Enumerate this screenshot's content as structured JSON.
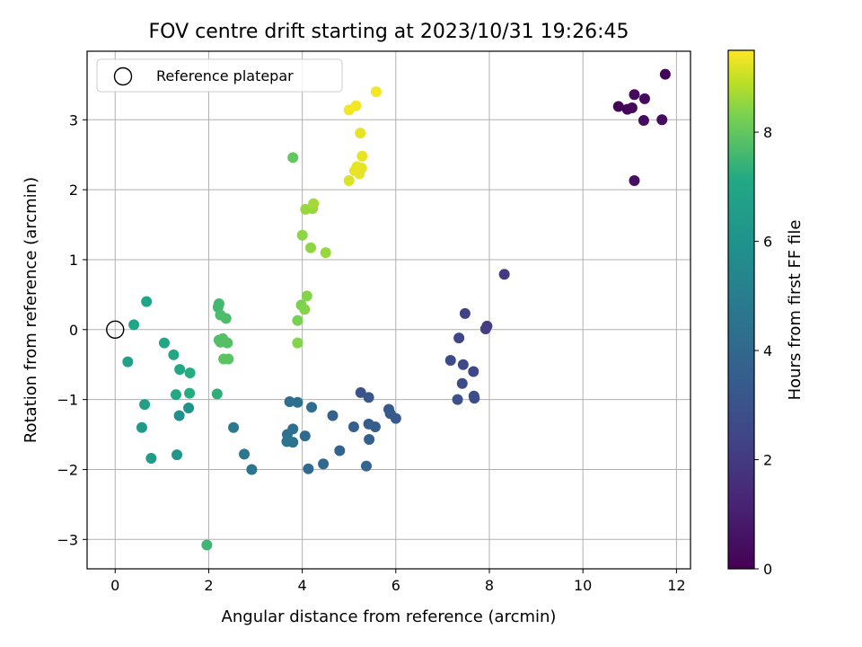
{
  "chart_data": {
    "type": "scatter",
    "title": "FOV centre drift starting at 2023/10/31 19:26:45",
    "xlabel": "Angular distance from reference (arcmin)",
    "ylabel": "Rotation from reference (arcmin)",
    "colorbar_label": "Hours from first FF file",
    "xlim": [
      -0.6,
      12.3
    ],
    "ylim": [
      -3.42,
      3.98
    ],
    "clim": [
      0,
      9.5
    ],
    "x_ticks": [
      "0",
      "2",
      "4",
      "6",
      "8",
      "10",
      "12"
    ],
    "y_ticks": [
      "−3",
      "−2",
      "−1",
      "0",
      "1",
      "2",
      "3"
    ],
    "colorbar_ticks": [
      "0",
      "2",
      "4",
      "6",
      "8"
    ],
    "colormap": "viridis",
    "grid": true,
    "legend": {
      "placement": "upper-left",
      "entries": [
        "Reference platepar"
      ]
    },
    "reference": {
      "x": 0,
      "y": 0
    },
    "points": [
      {
        "x": 10.76,
        "y": 3.19,
        "t": 0.1
      },
      {
        "x": 10.95,
        "y": 3.15,
        "t": 0.2
      },
      {
        "x": 11.05,
        "y": 3.17,
        "t": 0.2
      },
      {
        "x": 11.1,
        "y": 3.36,
        "t": 0.3
      },
      {
        "x": 11.32,
        "y": 3.3,
        "t": 0.3
      },
      {
        "x": 11.3,
        "y": 2.99,
        "t": 0.4
      },
      {
        "x": 11.69,
        "y": 3.0,
        "t": 0.4
      },
      {
        "x": 11.76,
        "y": 3.65,
        "t": 0.1
      },
      {
        "x": 11.1,
        "y": 2.13,
        "t": 0.5
      },
      {
        "x": 8.32,
        "y": 0.79,
        "t": 2.0
      },
      {
        "x": 7.95,
        "y": 0.05,
        "t": 2.1
      },
      {
        "x": 7.92,
        "y": 0.01,
        "t": 2.1
      },
      {
        "x": 7.48,
        "y": 0.23,
        "t": 2.3
      },
      {
        "x": 7.35,
        "y": -0.12,
        "t": 2.5
      },
      {
        "x": 7.17,
        "y": -0.44,
        "t": 2.7
      },
      {
        "x": 7.44,
        "y": -0.5,
        "t": 2.6
      },
      {
        "x": 7.66,
        "y": -0.6,
        "t": 2.5
      },
      {
        "x": 7.42,
        "y": -0.77,
        "t": 2.7
      },
      {
        "x": 7.67,
        "y": -0.95,
        "t": 2.8
      },
      {
        "x": 7.68,
        "y": -0.98,
        "t": 2.8
      },
      {
        "x": 7.32,
        "y": -1.0,
        "t": 2.9
      },
      {
        "x": 5.25,
        "y": -0.9,
        "t": 3.1
      },
      {
        "x": 5.42,
        "y": -0.97,
        "t": 3.2
      },
      {
        "x": 5.85,
        "y": -1.14,
        "t": 3.3
      },
      {
        "x": 5.88,
        "y": -1.2,
        "t": 3.4
      },
      {
        "x": 6.0,
        "y": -1.27,
        "t": 3.4
      },
      {
        "x": 5.42,
        "y": -1.35,
        "t": 3.5
      },
      {
        "x": 5.56,
        "y": -1.39,
        "t": 3.5
      },
      {
        "x": 5.43,
        "y": -1.57,
        "t": 3.6
      },
      {
        "x": 5.1,
        "y": -1.39,
        "t": 3.6
      },
      {
        "x": 4.65,
        "y": -1.23,
        "t": 3.7
      },
      {
        "x": 4.8,
        "y": -1.73,
        "t": 3.8
      },
      {
        "x": 5.37,
        "y": -1.95,
        "t": 3.9
      },
      {
        "x": 4.45,
        "y": -1.92,
        "t": 4.0
      },
      {
        "x": 4.13,
        "y": -1.99,
        "t": 4.1
      },
      {
        "x": 4.06,
        "y": -1.52,
        "t": 4.1
      },
      {
        "x": 4.2,
        "y": -1.11,
        "t": 4.2
      },
      {
        "x": 3.9,
        "y": -1.04,
        "t": 4.3
      },
      {
        "x": 3.73,
        "y": -1.03,
        "t": 4.3
      },
      {
        "x": 3.8,
        "y": -1.42,
        "t": 4.4
      },
      {
        "x": 3.68,
        "y": -1.5,
        "t": 4.4
      },
      {
        "x": 3.67,
        "y": -1.6,
        "t": 4.5
      },
      {
        "x": 3.8,
        "y": -1.61,
        "t": 4.5
      },
      {
        "x": 2.92,
        "y": -2.0,
        "t": 4.6
      },
      {
        "x": 2.76,
        "y": -1.78,
        "t": 4.7
      },
      {
        "x": 2.53,
        "y": -1.4,
        "t": 4.8
      },
      {
        "x": 1.57,
        "y": -1.12,
        "t": 6.0
      },
      {
        "x": 1.37,
        "y": -1.23,
        "t": 5.9
      },
      {
        "x": 1.32,
        "y": -1.79,
        "t": 6.2
      },
      {
        "x": 0.57,
        "y": -1.4,
        "t": 6.3
      },
      {
        "x": 0.77,
        "y": -1.84,
        "t": 6.5
      },
      {
        "x": 0.63,
        "y": -1.07,
        "t": 6.7
      },
      {
        "x": 0.27,
        "y": -0.46,
        "t": 6.8
      },
      {
        "x": 0.4,
        "y": 0.07,
        "t": 6.9
      },
      {
        "x": 0.67,
        "y": 0.4,
        "t": 6.9
      },
      {
        "x": 1.05,
        "y": -0.19,
        "t": 7.0
      },
      {
        "x": 1.25,
        "y": -0.36,
        "t": 7.0
      },
      {
        "x": 1.38,
        "y": -0.57,
        "t": 7.1
      },
      {
        "x": 1.6,
        "y": -0.62,
        "t": 7.2
      },
      {
        "x": 1.3,
        "y": -0.93,
        "t": 7.1
      },
      {
        "x": 1.59,
        "y": -0.91,
        "t": 7.2
      },
      {
        "x": 1.96,
        "y": -3.08,
        "t": 7.5
      },
      {
        "x": 2.18,
        "y": -0.92,
        "t": 7.3
      },
      {
        "x": 2.2,
        "y": 0.32,
        "t": 7.6
      },
      {
        "x": 2.22,
        "y": 0.37,
        "t": 7.6
      },
      {
        "x": 2.25,
        "y": 0.21,
        "t": 7.7
      },
      {
        "x": 2.37,
        "y": 0.16,
        "t": 7.7
      },
      {
        "x": 2.22,
        "y": -0.15,
        "t": 7.7
      },
      {
        "x": 2.3,
        "y": -0.13,
        "t": 7.8
      },
      {
        "x": 2.25,
        "y": -0.18,
        "t": 7.8
      },
      {
        "x": 2.4,
        "y": -0.19,
        "t": 7.8
      },
      {
        "x": 2.32,
        "y": -0.42,
        "t": 7.9
      },
      {
        "x": 2.42,
        "y": -0.42,
        "t": 7.9
      },
      {
        "x": 3.9,
        "y": -0.19,
        "t": 8.4
      },
      {
        "x": 3.9,
        "y": 0.13,
        "t": 8.3
      },
      {
        "x": 3.98,
        "y": 0.35,
        "t": 8.3
      },
      {
        "x": 4.05,
        "y": 0.29,
        "t": 8.4
      },
      {
        "x": 4.1,
        "y": 0.48,
        "t": 8.4
      },
      {
        "x": 3.8,
        "y": 2.46,
        "t": 8.0
      },
      {
        "x": 4.0,
        "y": 1.35,
        "t": 8.5
      },
      {
        "x": 4.18,
        "y": 1.17,
        "t": 8.5
      },
      {
        "x": 4.5,
        "y": 1.1,
        "t": 8.6
      },
      {
        "x": 4.07,
        "y": 1.72,
        "t": 8.6
      },
      {
        "x": 4.22,
        "y": 1.73,
        "t": 8.6
      },
      {
        "x": 4.24,
        "y": 1.8,
        "t": 8.7
      },
      {
        "x": 5.0,
        "y": 2.13,
        "t": 9.2
      },
      {
        "x": 5.12,
        "y": 2.27,
        "t": 9.3
      },
      {
        "x": 5.17,
        "y": 2.33,
        "t": 9.3
      },
      {
        "x": 5.27,
        "y": 2.31,
        "t": 9.3
      },
      {
        "x": 5.22,
        "y": 2.23,
        "t": 9.3
      },
      {
        "x": 5.28,
        "y": 2.48,
        "t": 9.3
      },
      {
        "x": 5.24,
        "y": 2.81,
        "t": 9.3
      },
      {
        "x": 5.0,
        "y": 3.14,
        "t": 9.4
      },
      {
        "x": 5.15,
        "y": 3.2,
        "t": 9.4
      },
      {
        "x": 5.58,
        "y": 3.4,
        "t": 9.4
      }
    ]
  }
}
